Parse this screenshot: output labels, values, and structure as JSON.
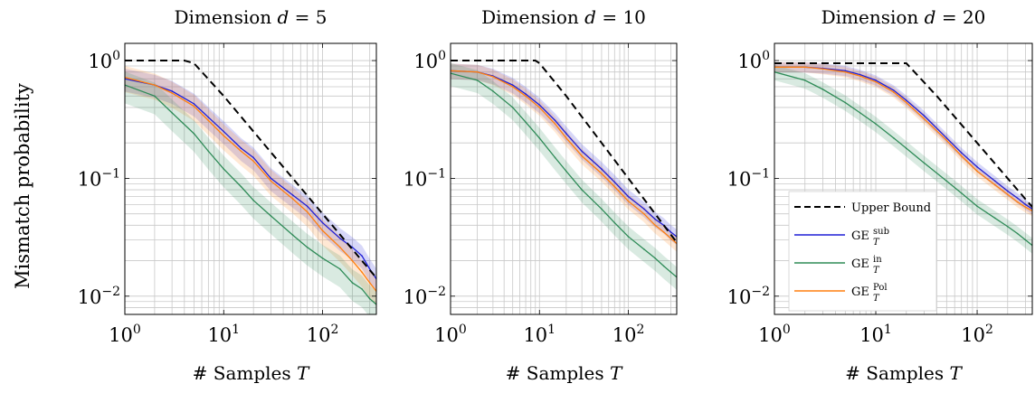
{
  "figure": {
    "ylabel": "Mismatch probability",
    "legend": [
      {
        "key": "upper",
        "label": "Upper Bound",
        "base": "",
        "sup": "",
        "sub": "",
        "color": "#000000",
        "dash": true
      },
      {
        "key": "sub",
        "label": "",
        "base": "GE",
        "sup": "sub",
        "sub": "T",
        "color": "#1f1fd6",
        "dash": false
      },
      {
        "key": "in",
        "label": "",
        "base": "GE",
        "sup": "in",
        "sub": "T",
        "color": "#2e8b57",
        "dash": false
      },
      {
        "key": "pol",
        "label": "",
        "base": "GE",
        "sup": "Pol",
        "sub": "T",
        "color": "#ff7f0e",
        "dash": false
      }
    ]
  },
  "chart_data": [
    {
      "type": "line",
      "title_prefix": "Dimension ",
      "title_var": "d",
      "title_value": "= 5",
      "xlabel_prefix": "# Samples ",
      "xlabel_var": "T",
      "xscale": "log",
      "yscale": "log",
      "xlim": [
        1,
        350
      ],
      "ylim": [
        0.007,
        1.4
      ],
      "xticks": [
        {
          "v": 1,
          "b": "10",
          "e": "0"
        },
        {
          "v": 10,
          "b": "10",
          "e": "1"
        },
        {
          "v": 100,
          "b": "10",
          "e": "2"
        }
      ],
      "yticks": [
        {
          "v": 0.01,
          "b": "10",
          "e": "−2"
        },
        {
          "v": 0.1,
          "b": "10",
          "e": "−1"
        },
        {
          "v": 1,
          "b": "10",
          "e": "0"
        }
      ],
      "grid": true,
      "series": [
        {
          "key": "upper",
          "x": [
            1,
            4,
            5,
            10,
            20,
            50,
            100,
            200,
            350
          ],
          "y": [
            1.0,
            1.0,
            0.95,
            0.5,
            0.25,
            0.1,
            0.05,
            0.025,
            0.0143
          ]
        },
        {
          "key": "sub",
          "x": [
            1,
            2,
            3,
            5,
            7,
            10,
            15,
            20,
            30,
            50,
            70,
            100,
            150,
            200,
            250,
            300,
            350
          ],
          "y": [
            0.7,
            0.62,
            0.55,
            0.43,
            0.33,
            0.25,
            0.18,
            0.15,
            0.1,
            0.072,
            0.058,
            0.042,
            0.031,
            0.026,
            0.022,
            0.017,
            0.014
          ],
          "band": 0.22
        },
        {
          "key": "pol",
          "x": [
            1,
            2,
            3,
            5,
            7,
            10,
            15,
            20,
            30,
            50,
            70,
            100,
            150,
            200,
            250,
            300,
            350
          ],
          "y": [
            0.72,
            0.62,
            0.53,
            0.41,
            0.31,
            0.23,
            0.17,
            0.14,
            0.095,
            0.067,
            0.052,
            0.036,
            0.026,
            0.02,
            0.016,
            0.013,
            0.011
          ],
          "band": 0.25
        },
        {
          "key": "in",
          "x": [
            1,
            2,
            3,
            5,
            7,
            10,
            15,
            20,
            30,
            50,
            70,
            100,
            150,
            200,
            250,
            300,
            350
          ],
          "y": [
            0.62,
            0.5,
            0.36,
            0.24,
            0.17,
            0.12,
            0.085,
            0.065,
            0.048,
            0.033,
            0.026,
            0.021,
            0.017,
            0.013,
            0.0115,
            0.0095,
            0.0085
          ],
          "band": 0.3
        }
      ]
    },
    {
      "type": "line",
      "title_prefix": "Dimension ",
      "title_var": "d",
      "title_value": "= 10",
      "xlabel_prefix": "# Samples ",
      "xlabel_var": "T",
      "xscale": "log",
      "yscale": "log",
      "xlim": [
        1,
        350
      ],
      "ylim": [
        0.007,
        1.4
      ],
      "xticks": [
        {
          "v": 1,
          "b": "10",
          "e": "0"
        },
        {
          "v": 10,
          "b": "10",
          "e": "1"
        },
        {
          "v": 100,
          "b": "10",
          "e": "2"
        }
      ],
      "yticks": [
        {
          "v": 0.01,
          "b": "10",
          "e": "−2"
        },
        {
          "v": 0.1,
          "b": "10",
          "e": "−1"
        },
        {
          "v": 1,
          "b": "10",
          "e": "0"
        }
      ],
      "grid": true,
      "series": [
        {
          "key": "upper",
          "x": [
            1,
            9,
            10,
            20,
            50,
            100,
            200,
            350
          ],
          "y": [
            1.0,
            1.0,
            0.95,
            0.5,
            0.2,
            0.1,
            0.05,
            0.0286
          ]
        },
        {
          "key": "sub",
          "x": [
            1,
            2,
            3,
            5,
            7,
            10,
            15,
            20,
            30,
            50,
            70,
            100,
            150,
            200,
            250,
            300,
            350
          ],
          "y": [
            0.82,
            0.8,
            0.74,
            0.62,
            0.52,
            0.42,
            0.31,
            0.24,
            0.17,
            0.12,
            0.093,
            0.07,
            0.055,
            0.045,
            0.04,
            0.035,
            0.032
          ],
          "band": 0.15
        },
        {
          "key": "pol",
          "x": [
            1,
            2,
            3,
            5,
            7,
            10,
            15,
            20,
            30,
            50,
            70,
            100,
            150,
            200,
            250,
            300,
            350
          ],
          "y": [
            0.82,
            0.8,
            0.73,
            0.6,
            0.5,
            0.4,
            0.29,
            0.22,
            0.155,
            0.11,
            0.085,
            0.064,
            0.05,
            0.04,
            0.035,
            0.031,
            0.028
          ],
          "band": 0.15
        },
        {
          "key": "in",
          "x": [
            1,
            2,
            3,
            5,
            7,
            10,
            15,
            20,
            30,
            50,
            70,
            100,
            150,
            200,
            250,
            300,
            350
          ],
          "y": [
            0.78,
            0.68,
            0.55,
            0.4,
            0.3,
            0.22,
            0.15,
            0.115,
            0.08,
            0.055,
            0.042,
            0.032,
            0.025,
            0.021,
            0.018,
            0.016,
            0.0145
          ],
          "band": 0.22
        }
      ]
    },
    {
      "type": "line",
      "title_prefix": "Dimension ",
      "title_var": "d",
      "title_value": "= 20",
      "xlabel_prefix": "# Samples ",
      "xlabel_var": "T",
      "xscale": "log",
      "yscale": "log",
      "xlim": [
        1,
        350
      ],
      "ylim": [
        0.007,
        1.4
      ],
      "xticks": [
        {
          "v": 1,
          "b": "10",
          "e": "0"
        },
        {
          "v": 10,
          "b": "10",
          "e": "1"
        },
        {
          "v": 100,
          "b": "10",
          "e": "2"
        }
      ],
      "yticks": [
        {
          "v": 0.01,
          "b": "10",
          "e": "−2"
        },
        {
          "v": 0.1,
          "b": "10",
          "e": "−1"
        },
        {
          "v": 1,
          "b": "10",
          "e": "0"
        }
      ],
      "grid": true,
      "legend_position": "bottom-right",
      "series": [
        {
          "key": "upper",
          "x": [
            1,
            19,
            20,
            40,
            100,
            200,
            350
          ],
          "y": [
            0.95,
            0.95,
            0.95,
            0.5,
            0.2,
            0.1,
            0.0571
          ]
        },
        {
          "key": "sub",
          "x": [
            1,
            2,
            3,
            5,
            7,
            10,
            15,
            20,
            30,
            50,
            70,
            100,
            150,
            200,
            250,
            300,
            350
          ],
          "y": [
            0.88,
            0.88,
            0.86,
            0.82,
            0.76,
            0.68,
            0.56,
            0.46,
            0.34,
            0.22,
            0.165,
            0.125,
            0.095,
            0.078,
            0.068,
            0.06,
            0.055
          ],
          "band": 0.1
        },
        {
          "key": "pol",
          "x": [
            1,
            2,
            3,
            5,
            7,
            10,
            15,
            20,
            30,
            50,
            70,
            100,
            150,
            200,
            250,
            300,
            350
          ],
          "y": [
            0.88,
            0.88,
            0.85,
            0.8,
            0.74,
            0.66,
            0.54,
            0.44,
            0.32,
            0.21,
            0.155,
            0.115,
            0.088,
            0.073,
            0.063,
            0.057,
            0.053
          ],
          "band": 0.1
        },
        {
          "key": "in",
          "x": [
            1,
            2,
            3,
            5,
            7,
            10,
            15,
            20,
            30,
            50,
            70,
            100,
            150,
            200,
            250,
            300,
            350
          ],
          "y": [
            0.8,
            0.68,
            0.57,
            0.44,
            0.36,
            0.29,
            0.22,
            0.18,
            0.135,
            0.095,
            0.075,
            0.058,
            0.046,
            0.039,
            0.034,
            0.03,
            0.027
          ],
          "band": 0.15
        }
      ]
    }
  ]
}
